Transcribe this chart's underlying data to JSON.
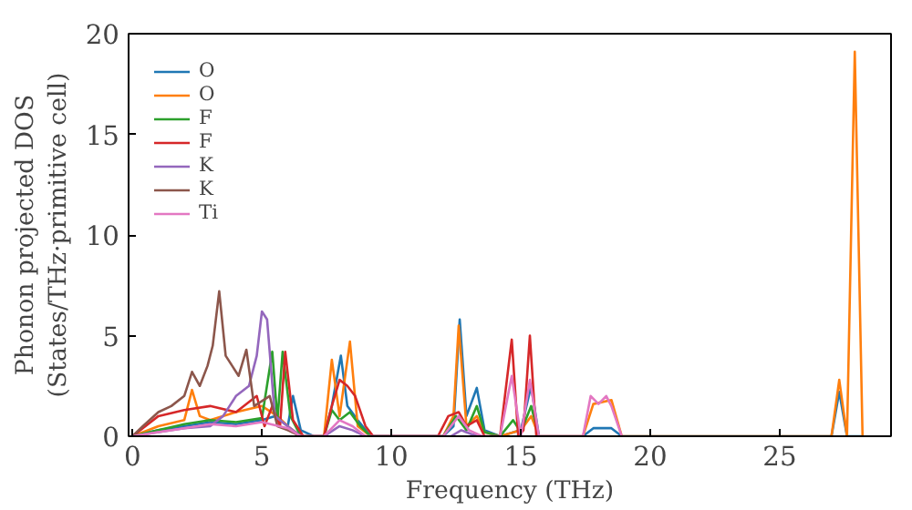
{
  "chart_data": {
    "type": "line",
    "xlabel": "Frequency (THz)",
    "ylabel": "Phonon projected DOS\n(States/THz·primitive cell)",
    "xlim": [
      -0.15,
      29.3
    ],
    "ylim": [
      0,
      20
    ],
    "xticks": [
      0,
      5,
      10,
      15,
      20,
      25
    ],
    "yticks": [
      0,
      5,
      10,
      15,
      20
    ],
    "grid": false,
    "legend": "top left",
    "series": [
      {
        "name": "O",
        "color": "#1f77b4",
        "x": [
          0,
          1,
          2,
          3,
          4,
          5,
          5.5,
          6.0,
          6.2,
          6.5,
          7.0,
          7.4,
          7.7,
          8.05,
          8.3,
          8.7,
          9.2,
          12.0,
          12.4,
          12.64,
          12.9,
          13.3,
          13.6,
          14.2,
          15.0,
          15.4,
          15.7,
          17.4,
          17.8,
          18.5,
          18.9,
          27.0,
          27.3,
          27.6,
          27.9,
          28.2
        ],
        "values": [
          0,
          0.3,
          0.5,
          0.7,
          0.6,
          0.8,
          1,
          0.5,
          2,
          0.3,
          0,
          0,
          1.5,
          4,
          1.5,
          0.8,
          0,
          0,
          0.5,
          5.8,
          1,
          2.4,
          0.3,
          0,
          0.3,
          2.5,
          0,
          0,
          0.4,
          0.4,
          0,
          0,
          2.2,
          0,
          null,
          0
        ]
      },
      {
        "name": "O",
        "color": "#ff7f0e",
        "x": [
          0,
          1,
          2,
          2.3,
          2.6,
          3,
          4,
          5,
          5.6,
          6,
          6.5,
          7.0,
          7.4,
          7.7,
          8.0,
          8.4,
          8.7,
          9.2,
          12.0,
          12.4,
          12.6,
          12.9,
          13.3,
          13.6,
          14.2,
          15.0,
          15.4,
          15.7,
          17.4,
          17.8,
          18.5,
          18.9,
          27.0,
          27.3,
          27.6,
          27.9,
          28.2
        ],
        "values": [
          0,
          0.5,
          0.8,
          2.3,
          1,
          0.8,
          1.2,
          1.5,
          1,
          0.5,
          0,
          0,
          0,
          3.8,
          1,
          4.7,
          0.5,
          0,
          0,
          1,
          5.5,
          0.5,
          1,
          0.2,
          0,
          0.3,
          1,
          0,
          0,
          1.6,
          1.8,
          0,
          0,
          2.8,
          0,
          19.1,
          0
        ]
      },
      {
        "name": "F",
        "color": "#2ca02c",
        "x": [
          0,
          1,
          2,
          3,
          4,
          5,
          5.4,
          5.6,
          5.8,
          6.1,
          6.5,
          7.4,
          7.7,
          8.0,
          8.4,
          8.8,
          9.2,
          12.0,
          12.5,
          12.9,
          13.3,
          13.6,
          14.2,
          14.7,
          15.0,
          15.4,
          15.7
        ],
        "values": [
          0,
          0.3,
          0.6,
          0.8,
          0.7,
          0.9,
          4.2,
          0.8,
          4.2,
          1,
          0,
          0,
          1.3,
          0.8,
          1.2,
          0.5,
          0,
          0,
          1,
          0.3,
          1.5,
          0.2,
          0,
          0.8,
          0.2,
          1.5,
          0
        ]
      },
      {
        "name": "F",
        "color": "#d62728",
        "x": [
          0,
          0.5,
          1,
          2,
          3,
          4,
          4.8,
          5.1,
          5.4,
          5.7,
          5.9,
          6.2,
          6.6,
          7.4,
          7.7,
          8.0,
          8.3,
          8.6,
          9.0,
          9.3,
          11.8,
          12.2,
          12.6,
          12.9,
          13.3,
          13.6,
          14.2,
          14.65,
          14.9,
          15.1,
          15.35,
          15.6
        ],
        "values": [
          0,
          0.5,
          1,
          1.3,
          1.5,
          1.2,
          2,
          0.5,
          1.5,
          0.5,
          4.2,
          0.8,
          0,
          0,
          1.5,
          2.8,
          2.5,
          2,
          0.5,
          0,
          0,
          1,
          1.2,
          0.5,
          0.8,
          0,
          0,
          4.8,
          0,
          0.3,
          5.0,
          0
        ]
      },
      {
        "name": "K",
        "color": "#9467bd",
        "x": [
          0,
          1,
          2,
          3,
          3.5,
          4,
          4.5,
          4.8,
          5.0,
          5.2,
          5.5,
          6.0,
          6.5,
          7.4,
          8.0,
          8.5,
          9.0,
          12.3,
          12.7,
          13.1,
          13.5
        ],
        "values": [
          0,
          0.2,
          0.4,
          0.5,
          1,
          2,
          2.5,
          4,
          6.2,
          5.8,
          1,
          0.5,
          0,
          0,
          0.5,
          0.3,
          0,
          0,
          0.3,
          0.1,
          0
        ]
      },
      {
        "name": "K",
        "color": "#8c564b",
        "x": [
          0,
          0.4,
          1,
          1.5,
          2.0,
          2.3,
          2.6,
          2.9,
          3.1,
          3.35,
          3.6,
          4.1,
          4.4,
          4.7,
          5.3,
          5.6,
          6.0,
          6.5
        ],
        "values": [
          0,
          0.5,
          1.2,
          1.5,
          2,
          3.2,
          2.5,
          3.5,
          4.5,
          7.2,
          4,
          3,
          4.3,
          1.5,
          2,
          0.5,
          0.3,
          0
        ]
      },
      {
        "name": "Ti",
        "color": "#e377c2",
        "x": [
          0,
          1,
          2,
          3,
          4,
          5,
          6,
          6.5,
          7.4,
          8.0,
          8.5,
          9.0,
          12.0,
          12.6,
          13.0,
          13.5,
          14.2,
          14.65,
          15.0,
          15.35,
          15.7,
          17.4,
          17.7,
          18.0,
          18.3,
          18.5,
          18.9
        ],
        "values": [
          0,
          0.2,
          0.4,
          0.6,
          0.5,
          0.7,
          0.4,
          0,
          0,
          0.8,
          0.5,
          0,
          0,
          1,
          0.3,
          0,
          0,
          3,
          0,
          2.8,
          0,
          0,
          2.0,
          1.6,
          2.0,
          1.5,
          0
        ]
      }
    ]
  }
}
